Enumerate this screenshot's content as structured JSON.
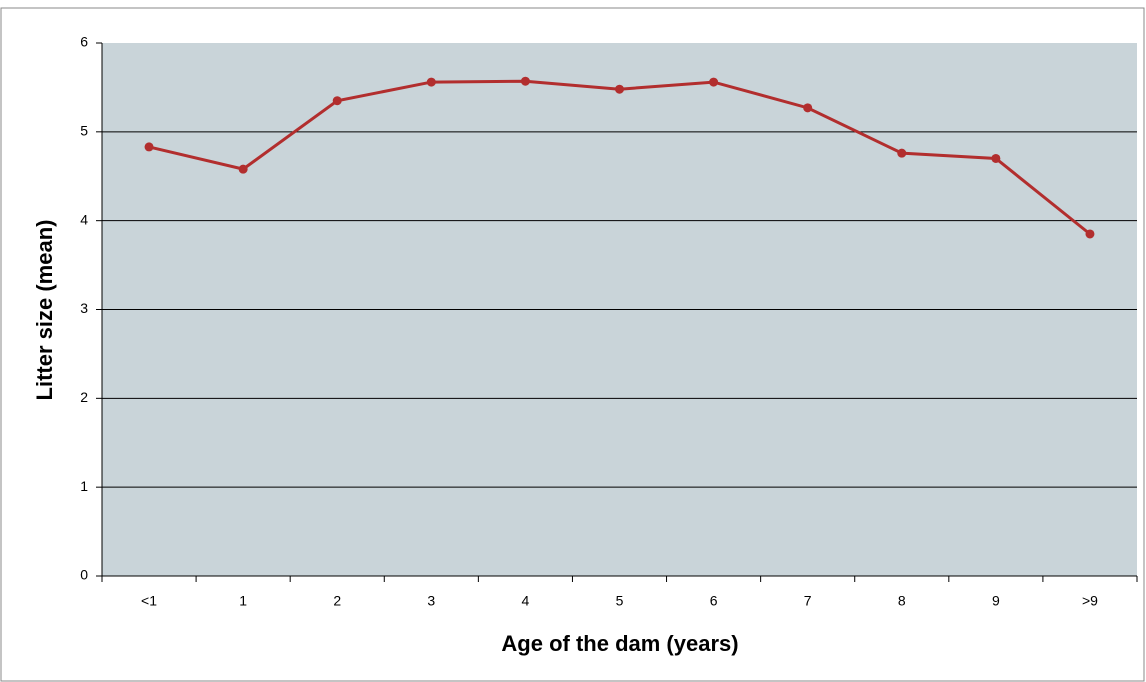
{
  "chart_data": {
    "type": "line",
    "x_label": "Age of the dam (years)",
    "y_label": "Litter size (mean)",
    "categories": [
      "<1",
      "1",
      "2",
      "3",
      "4",
      "5",
      "6",
      "7",
      "8",
      "9",
      ">9"
    ],
    "series": [
      {
        "name": "Litter size",
        "color": "#b22e2e",
        "values": [
          4.83,
          4.58,
          5.35,
          5.56,
          5.57,
          5.48,
          5.56,
          5.27,
          4.76,
          4.7,
          3.85
        ]
      }
    ],
    "ylim": [
      0,
      6
    ],
    "yticks": [
      0,
      1,
      2,
      3,
      4,
      5,
      6
    ],
    "grid": true
  }
}
